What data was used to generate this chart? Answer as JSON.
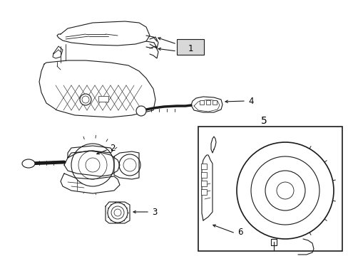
{
  "bg_color": "#ffffff",
  "line_color": "#1a1a1a",
  "fig_width": 4.89,
  "fig_height": 3.6,
  "dpi": 100,
  "label_fontsize": 8.5,
  "label_fontsize_large": 10
}
